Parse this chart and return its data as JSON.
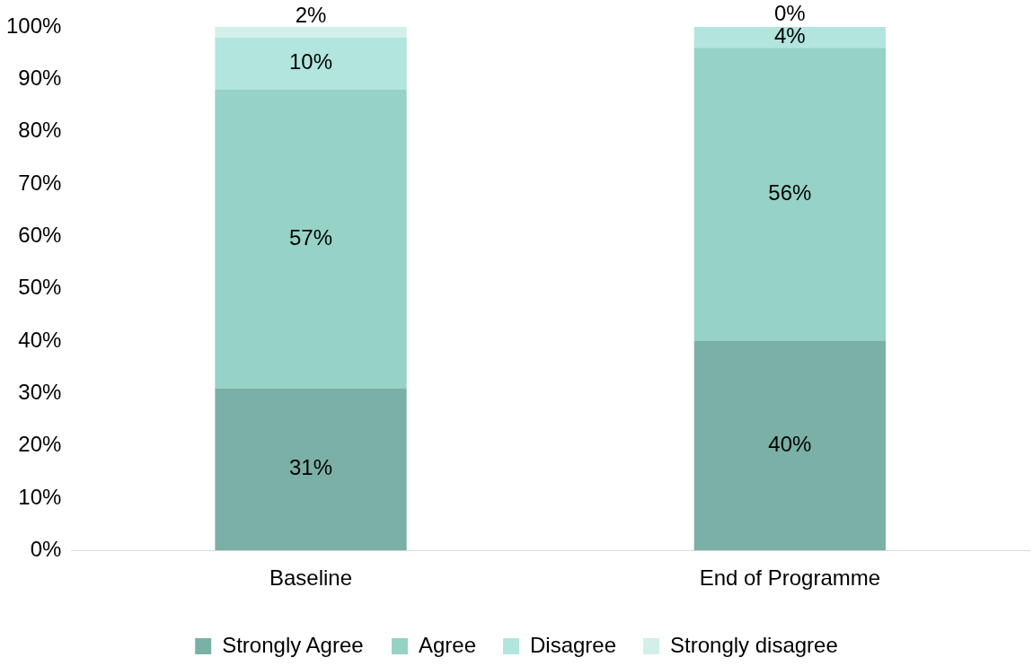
{
  "chart_data": {
    "type": "bar",
    "stacked": true,
    "categories": [
      "Baseline",
      "End of Programme"
    ],
    "series": [
      {
        "name": "Strongly Agree",
        "color": "#7bb0a6",
        "values": [
          31,
          40
        ],
        "value_labels": [
          "31%",
          "40%"
        ]
      },
      {
        "name": "Agree",
        "color": "#96d2c6",
        "values": [
          57,
          56
        ],
        "value_labels": [
          "57%",
          "56%"
        ]
      },
      {
        "name": "Disagree",
        "color": "#b1e5dd",
        "values": [
          10,
          4
        ],
        "value_labels": [
          "10%",
          "4%"
        ]
      },
      {
        "name": "Strongly disagree",
        "color": "#d2efe9",
        "values": [
          2,
          0
        ],
        "value_labels": [
          "2%",
          "0%"
        ]
      }
    ],
    "ylim": [
      0,
      100
    ],
    "yticks": [
      {
        "value": 0,
        "label": "0%"
      },
      {
        "value": 10,
        "label": "10%"
      },
      {
        "value": 20,
        "label": "20%"
      },
      {
        "value": 30,
        "label": "30%"
      },
      {
        "value": 40,
        "label": "40%"
      },
      {
        "value": 50,
        "label": "50%"
      },
      {
        "value": 60,
        "label": "60%"
      },
      {
        "value": 70,
        "label": "70%"
      },
      {
        "value": 80,
        "label": "80%"
      },
      {
        "value": 90,
        "label": "90%"
      },
      {
        "value": 100,
        "label": "100%"
      }
    ],
    "grid": false,
    "legend": "bottom"
  }
}
